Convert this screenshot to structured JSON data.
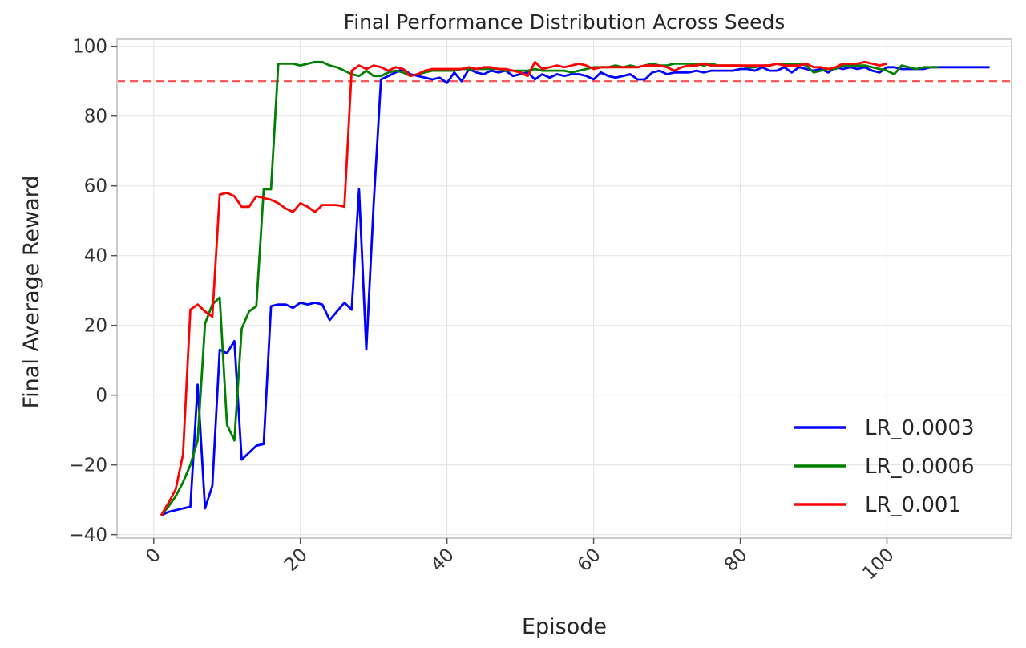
{
  "chart_data": {
    "type": "line",
    "title": "Final Performance Distribution Across Seeds",
    "xlabel": "Episode",
    "ylabel": "Final Average Reward",
    "xlim": [
      -5,
      117
    ],
    "ylim": [
      -41,
      102
    ],
    "xticks": [
      0,
      20,
      40,
      60,
      80,
      100
    ],
    "yticks": [
      -40,
      -20,
      0,
      20,
      40,
      60,
      80,
      100
    ],
    "grid": true,
    "legend_position": "bottom-right",
    "threshold": {
      "y": 90,
      "color": "#ff4d4d",
      "style": "dashed"
    },
    "series": [
      {
        "name": "LR_0.0003",
        "color": "#0000ff",
        "x": [
          1,
          2,
          3,
          4,
          5,
          6,
          7,
          8,
          9,
          10,
          11,
          12,
          13,
          14,
          15,
          16,
          17,
          18,
          19,
          20,
          21,
          22,
          23,
          24,
          25,
          26,
          27,
          28,
          29,
          30,
          31,
          32,
          33,
          34,
          35,
          36,
          37,
          38,
          39,
          40,
          41,
          42,
          43,
          44,
          45,
          46,
          47,
          48,
          49,
          50,
          51,
          52,
          53,
          54,
          55,
          56,
          57,
          58,
          59,
          60,
          61,
          62,
          63,
          64,
          65,
          66,
          67,
          68,
          69,
          70,
          71,
          72,
          73,
          74,
          75,
          76,
          77,
          78,
          79,
          80,
          81,
          82,
          83,
          84,
          85,
          86,
          87,
          88,
          89,
          90,
          91,
          92,
          93,
          94,
          95,
          96,
          97,
          98,
          99,
          100,
          101,
          102,
          103,
          104,
          105,
          106,
          107,
          108,
          109,
          110,
          111,
          112,
          113,
          114
        ],
        "y": [
          -34.5,
          -33.5,
          -33,
          -32.5,
          -32,
          3,
          -32.5,
          -26,
          13,
          12,
          15.5,
          -18.5,
          -16.5,
          -14.5,
          -14,
          25.5,
          26,
          26,
          25,
          26.5,
          26,
          26.5,
          26,
          21.5,
          24,
          26.5,
          24.5,
          59,
          13,
          55,
          90.5,
          91.5,
          92.5,
          93.5,
          92,
          91.5,
          91,
          90.5,
          91,
          89.5,
          92.5,
          90,
          93.5,
          92.5,
          92,
          93,
          92.5,
          93,
          91.5,
          92,
          92.5,
          90.5,
          92,
          91,
          92,
          91.5,
          92,
          92,
          91.5,
          90.5,
          92.5,
          91.5,
          91,
          91.5,
          92,
          90.5,
          90.5,
          92.5,
          93,
          92,
          92.5,
          92.5,
          92.5,
          93,
          92.5,
          93,
          93,
          93,
          93,
          93.5,
          93.5,
          93,
          94,
          93,
          93,
          94,
          92.5,
          94,
          93.5,
          93,
          93.5,
          92.5,
          94,
          93.5,
          94,
          93.5,
          94,
          93,
          92.5,
          94,
          94,
          93.5,
          93.5,
          93.5,
          93.5,
          94,
          94,
          94,
          94,
          94,
          94,
          94,
          94,
          94
        ]
      },
      {
        "name": "LR_0.0006",
        "color": "#008000",
        "x": [
          1,
          2,
          3,
          4,
          5,
          6,
          7,
          8,
          9,
          10,
          11,
          12,
          13,
          14,
          15,
          16,
          17,
          18,
          19,
          20,
          21,
          22,
          23,
          24,
          25,
          26,
          27,
          28,
          29,
          30,
          31,
          32,
          33,
          34,
          35,
          36,
          37,
          38,
          39,
          40,
          41,
          42,
          43,
          44,
          45,
          46,
          47,
          48,
          49,
          50,
          51,
          52,
          53,
          54,
          55,
          56,
          57,
          58,
          59,
          60,
          61,
          62,
          63,
          64,
          65,
          66,
          67,
          68,
          69,
          70,
          71,
          72,
          73,
          74,
          75,
          76,
          77,
          78,
          79,
          80,
          81,
          82,
          83,
          84,
          85,
          86,
          87,
          88,
          89,
          90,
          91,
          92,
          93,
          94,
          95,
          96,
          97,
          98,
          99,
          100,
          101,
          102,
          103,
          104,
          105,
          106,
          107
        ],
        "y": [
          -34.5,
          -32,
          -29,
          -25,
          -20,
          -13,
          20.5,
          26,
          28,
          -8.5,
          -13,
          19,
          24,
          25.5,
          59,
          59,
          95,
          95,
          95,
          94.5,
          95,
          95.5,
          95.5,
          94.5,
          94,
          93,
          92,
          91.5,
          93,
          91.5,
          91.5,
          92.5,
          93,
          92.5,
          91.5,
          92,
          92.5,
          93,
          93,
          93,
          93,
          93.5,
          93.5,
          93.5,
          93.5,
          93.5,
          93.5,
          93,
          93,
          93,
          93,
          93.5,
          93,
          93,
          93,
          93,
          92.5,
          93,
          93.5,
          94,
          94,
          94,
          94.5,
          94,
          94.5,
          94,
          94.5,
          95,
          94.5,
          94.5,
          95,
          95,
          95,
          95,
          94.5,
          95,
          94.5,
          94.5,
          94.5,
          94.5,
          94,
          94,
          94.5,
          94.5,
          95,
          95,
          95,
          95,
          94.5,
          92.5,
          93,
          93.5,
          93.5,
          94.5,
          94.5,
          94.5,
          94.5,
          94,
          93.5,
          93,
          92,
          94.5,
          94,
          93.5,
          94,
          94,
          94
        ]
      },
      {
        "name": "LR_0.001",
        "color": "#ff0000",
        "x": [
          1,
          2,
          3,
          4,
          5,
          6,
          7,
          8,
          9,
          10,
          11,
          12,
          13,
          14,
          15,
          16,
          17,
          18,
          19,
          20,
          21,
          22,
          23,
          24,
          25,
          26,
          27,
          28,
          29,
          30,
          31,
          32,
          33,
          34,
          35,
          36,
          37,
          38,
          39,
          40,
          41,
          42,
          43,
          44,
          45,
          46,
          47,
          48,
          49,
          50,
          51,
          52,
          53,
          54,
          55,
          56,
          57,
          58,
          59,
          60,
          61,
          62,
          63,
          64,
          65,
          66,
          67,
          68,
          69,
          70,
          71,
          72,
          73,
          74,
          75,
          76,
          77,
          78,
          79,
          80,
          81,
          82,
          83,
          84,
          85,
          86,
          87,
          88,
          89,
          90,
          91,
          92,
          93,
          94,
          95,
          96,
          97,
          98,
          99,
          100
        ],
        "y": [
          -34.5,
          -31,
          -27,
          -17,
          24.5,
          26,
          24,
          22.5,
          57.5,
          58,
          57,
          54,
          54,
          57,
          56.5,
          56,
          55,
          53.5,
          52.5,
          55,
          54,
          52.5,
          54.5,
          54.5,
          54.5,
          54,
          93,
          94.5,
          93.5,
          94.5,
          94,
          93,
          94,
          93.5,
          91.5,
          92,
          93,
          93.5,
          93.5,
          93.5,
          93.5,
          93.5,
          94,
          93.5,
          94,
          94,
          93.5,
          93.5,
          93,
          92.5,
          91.5,
          95.5,
          93.5,
          94,
          94.5,
          94,
          94.5,
          95,
          94.5,
          93.5,
          94,
          94,
          94,
          94,
          94,
          94,
          94.5,
          94.5,
          94.5,
          94,
          93,
          94,
          94.5,
          94.5,
          95,
          94.5,
          94.5,
          94.5,
          94.5,
          94.5,
          94.5,
          94.5,
          94.5,
          94.5,
          95,
          94.5,
          94.5,
          94.5,
          95,
          94,
          94,
          93.5,
          94,
          95,
          95,
          95,
          95.5,
          95,
          94.5,
          95
        ]
      }
    ]
  }
}
